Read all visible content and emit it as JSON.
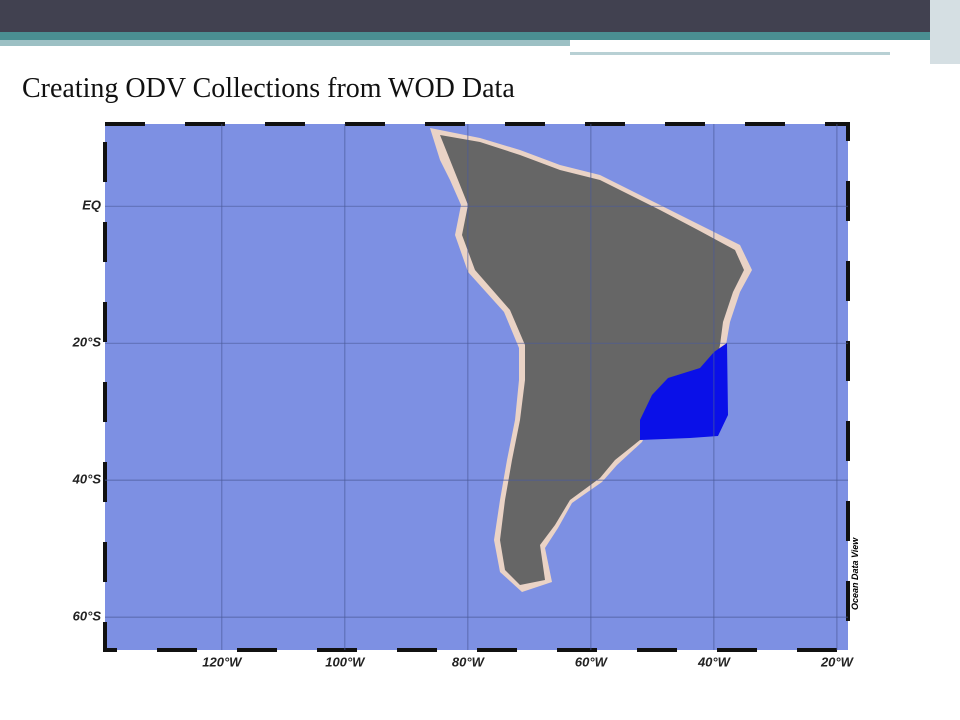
{
  "title": "Creating ODV Collections from WOD Data",
  "map": {
    "lon_range": [
      -139,
      -18.2
    ],
    "lat_range": [
      12,
      -64.8
    ],
    "lon_ticks": [
      {
        "value": -120,
        "label": "120°W"
      },
      {
        "value": -100,
        "label": "100°W"
      },
      {
        "value": -80,
        "label": "80°W"
      },
      {
        "value": -60,
        "label": "60°W"
      },
      {
        "value": -40,
        "label": "40°W"
      },
      {
        "value": -20,
        "label": "20°W"
      }
    ],
    "lat_ticks": [
      {
        "value": 0,
        "label": "EQ"
      },
      {
        "value": -20,
        "label": "20°S"
      },
      {
        "value": -40,
        "label": "40°S"
      },
      {
        "value": -60,
        "label": "60°S"
      }
    ],
    "watermark": "Ocean Data View"
  }
}
